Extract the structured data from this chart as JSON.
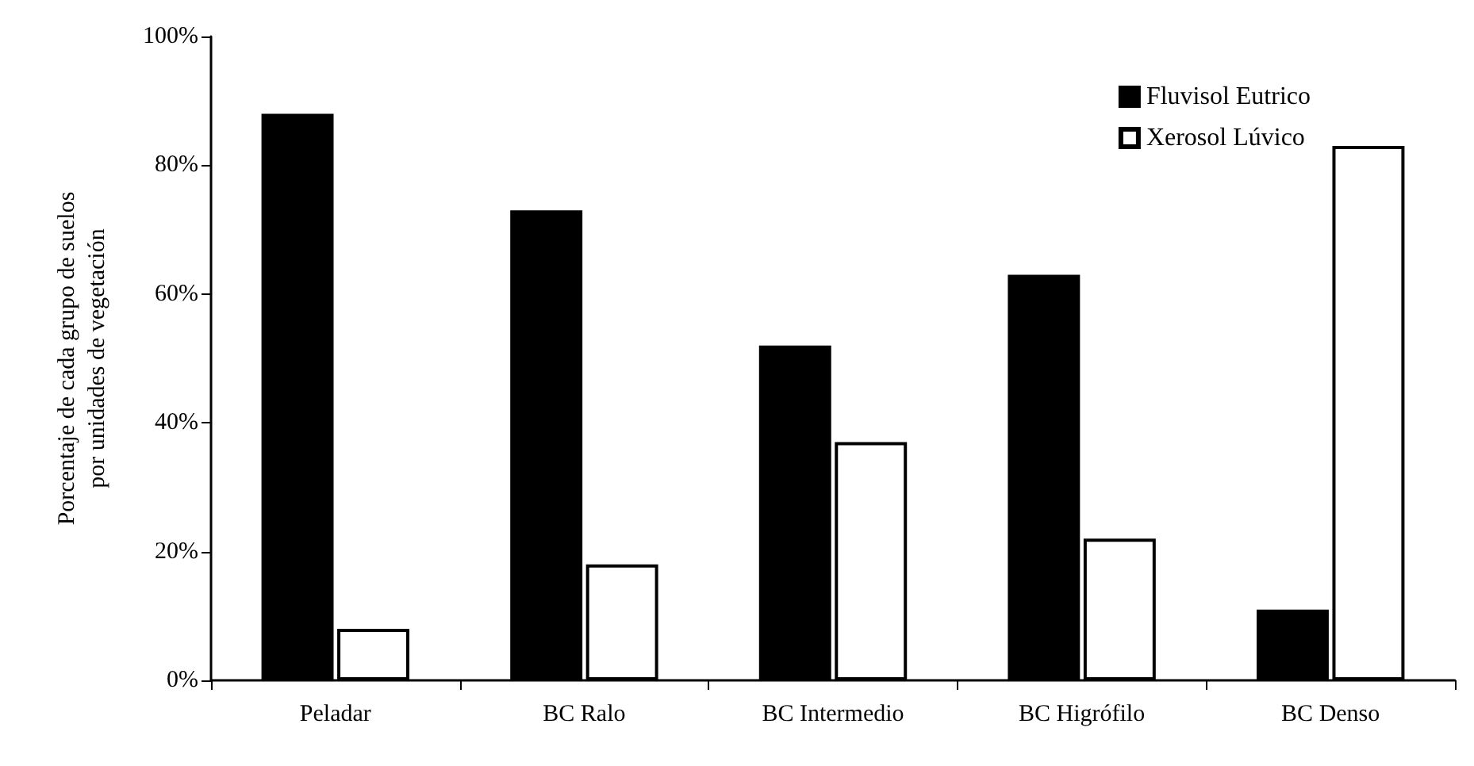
{
  "chart_data": {
    "type": "bar",
    "ylabel": "Porcentaje de cada grupo de suelos\npor unidades de vegetación",
    "categories": [
      "Peladar",
      "BC Ralo",
      "BC Intermedio",
      "BC Higrófilo",
      "BC Denso"
    ],
    "series": [
      {
        "name": "Fluvisol Eutrico",
        "color": "#000000",
        "values": [
          88,
          73,
          52,
          63,
          11
        ]
      },
      {
        "name": "Xerosol Lúvico",
        "color": "#ffffff",
        "values": [
          8,
          18,
          37,
          22,
          83
        ]
      }
    ],
    "ylim": [
      0,
      100
    ],
    "yticks": [
      {
        "value": 0,
        "label": "0%"
      },
      {
        "value": 20,
        "label": "20%"
      },
      {
        "value": 40,
        "label": "40%"
      },
      {
        "value": 60,
        "label": "60%"
      },
      {
        "value": 80,
        "label": "80%"
      },
      {
        "value": 100,
        "label": "100%"
      }
    ],
    "grid": false,
    "legend": "top right"
  }
}
